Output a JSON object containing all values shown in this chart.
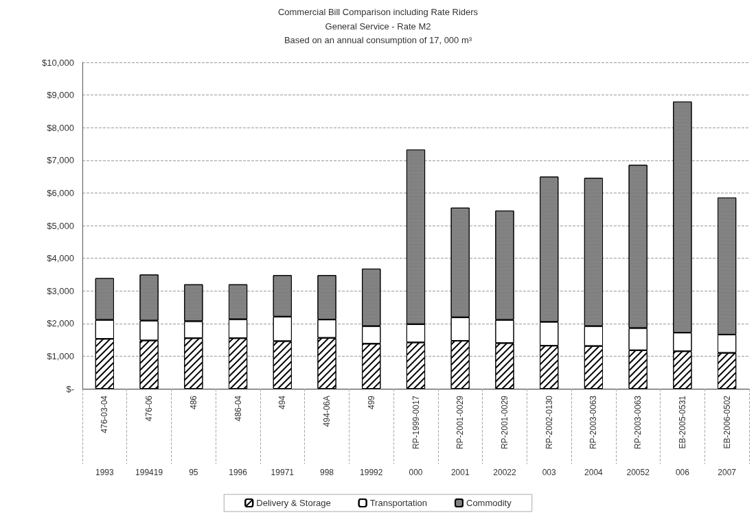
{
  "chart_data": {
    "type": "bar",
    "title": "Commercial Bill Comparison including Rate Riders",
    "subtitle": "General Service - Rate M2\nBased on an annual consumption of 17, 000 m³",
    "categories": [
      "476-03-04\n1993",
      "476-06\n199419",
      "486\n95",
      "486-04\n1996",
      "494\n19971",
      "494-06A\n998",
      "499\n19992",
      "RP-1999-0017\n000",
      "RP-2001-0029\n2001",
      "RP-2001-0029\n20022",
      "RP-2002-0130\n003",
      "RP-2003-0063\n2004",
      "RP-2003-0063\n20052",
      "EB-2005-0531\n006",
      "EB-2006-0502\n2007"
    ],
    "stacked": true,
    "series": [
      {
        "name": "Delivery & Storage",
        "color": "#ffffff",
        "values": [
          1530,
          1480,
          1550,
          1550,
          1460,
          1560,
          1380,
          1420,
          1470,
          1400,
          1320,
          1310,
          1180,
          1150,
          1100
        ]
      },
      {
        "name": "Transportation",
        "color": "#ffffff",
        "values": [
          580,
          610,
          520,
          580,
          750,
          560,
          540,
          560,
          720,
          710,
          730,
          610,
          680,
          570,
          560
        ]
      },
      {
        "name": "Commodity",
        "color": "#8c8c8c",
        "values": [
          1280,
          1410,
          1130,
          1070,
          1270,
          1360,
          1760,
          5350,
          3360,
          3350,
          4450,
          4540,
          5000,
          7080,
          4200
        ]
      }
    ],
    "ylim": [
      0,
      10000
    ],
    "yticks": [
      {
        "value": 0,
        "label": "$-"
      },
      {
        "value": 1000,
        "label": "$1,000"
      },
      {
        "value": 2000,
        "label": "$2,000"
      },
      {
        "value": 3000,
        "label": "$3,000"
      },
      {
        "value": 4000,
        "label": "$4,000"
      },
      {
        "value": 5000,
        "label": "$5,000"
      },
      {
        "value": 6000,
        "label": "$6,000"
      },
      {
        "value": 7000,
        "label": "$7,000"
      },
      {
        "value": 8000,
        "label": "$8,000"
      },
      {
        "value": 9000,
        "label": "$9,000"
      },
      {
        "value": 10000,
        "label": "$10,000"
      }
    ],
    "grid": "y",
    "legend": "bottom"
  }
}
